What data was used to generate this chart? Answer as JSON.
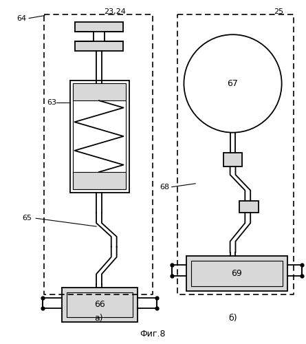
{
  "fig_width": 4.45,
  "fig_height": 5.0,
  "dpi": 100,
  "bg_color": "#ffffff",
  "line_color": "#000000",
  "gray_fill": "#d8d8d8",
  "label_a": "а)",
  "label_b": "б)",
  "fig_label": "Фиг.8"
}
